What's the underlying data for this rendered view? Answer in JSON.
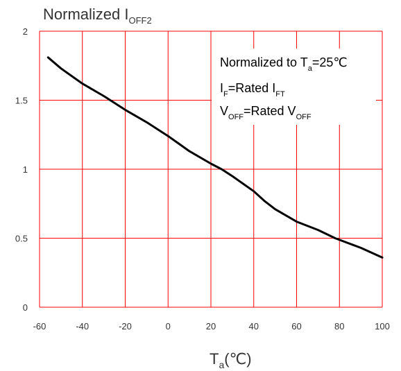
{
  "chart_data": {
    "type": "line",
    "ylabel": {
      "main": "Normalized I",
      "sub": "OFF2"
    },
    "xlabel": {
      "main": "T",
      "sub": "a",
      "unit": "(℃)"
    },
    "xlim": [
      -60,
      100
    ],
    "ylim": [
      0,
      2
    ],
    "x_ticks": [
      -60,
      -40,
      -20,
      0,
      20,
      40,
      60,
      80,
      100
    ],
    "x_tick_labels": [
      "-60",
      "-40",
      "-20",
      "0",
      "20",
      "40",
      "60",
      "80",
      "100"
    ],
    "y_ticks": [
      0,
      0.5,
      1,
      1.5,
      2
    ],
    "y_tick_labels": [
      "0",
      "0.5",
      "1",
      "1.5",
      "2"
    ],
    "grid": true,
    "grid_color": "#ff0000",
    "line_color": "#000000",
    "annotations": [
      {
        "parts": [
          {
            "t": "Normalized to T"
          },
          {
            "t": "a",
            "sub": true
          },
          {
            "t": "=25℃"
          }
        ]
      },
      {
        "parts": [
          {
            "t": "I"
          },
          {
            "t": "F",
            "sub": true
          },
          {
            "t": "=Rated I"
          },
          {
            "t": "FT",
            "sub": true
          }
        ]
      },
      {
        "parts": [
          {
            "t": "V"
          },
          {
            "t": "OFF",
            "sub": true
          },
          {
            "t": "=Rated V"
          },
          {
            "t": "OFF",
            "sub": true
          }
        ]
      }
    ],
    "series": [
      {
        "x": [
          -56,
          -50,
          -40,
          -30,
          -20,
          -10,
          0,
          10,
          20,
          25,
          30,
          40,
          45,
          50,
          60,
          70,
          78,
          90,
          100
        ],
        "y": [
          1.81,
          1.73,
          1.62,
          1.53,
          1.43,
          1.34,
          1.24,
          1.13,
          1.04,
          1.0,
          0.95,
          0.84,
          0.77,
          0.71,
          0.62,
          0.56,
          0.5,
          0.43,
          0.36
        ]
      }
    ]
  }
}
